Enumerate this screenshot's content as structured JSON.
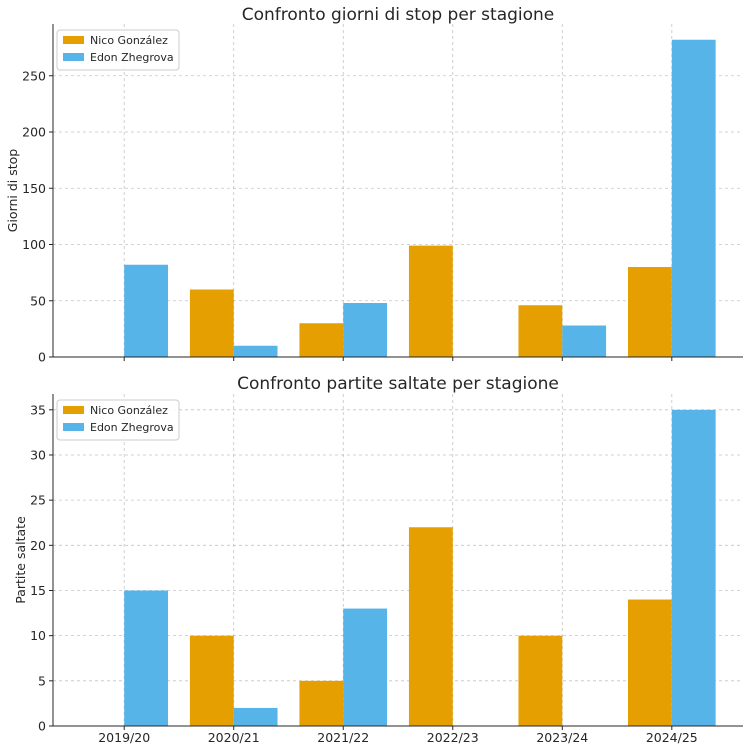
{
  "colors": {
    "nico": "#E69F00",
    "edon": "#56B4E9"
  },
  "chart_data": [
    {
      "type": "bar",
      "title": "Confronto giorni di stop per stagione",
      "xlabel": "",
      "ylabel": "Giorni di stop",
      "categories": [
        "2019/20",
        "2020/21",
        "2021/22",
        "2022/23",
        "2023/24",
        "2024/25"
      ],
      "series": [
        {
          "name": "Nico González",
          "values": [
            0,
            60,
            30,
            99,
            46,
            80
          ]
        },
        {
          "name": "Edon Zhegrova",
          "values": [
            82,
            10,
            48,
            0,
            28,
            282
          ]
        }
      ],
      "ylim": [
        0,
        296
      ],
      "yticks": [
        0,
        50,
        100,
        150,
        200,
        250
      ],
      "show_xticklabels": false,
      "grid": true,
      "legend": "top-left"
    },
    {
      "type": "bar",
      "title": "Confronto partite saltate per stagione",
      "xlabel": "",
      "ylabel": "Partite saltate",
      "categories": [
        "2019/20",
        "2020/21",
        "2021/22",
        "2022/23",
        "2023/24",
        "2024/25"
      ],
      "series": [
        {
          "name": "Nico González",
          "values": [
            0,
            10,
            5,
            22,
            10,
            14
          ]
        },
        {
          "name": "Edon Zhegrova",
          "values": [
            15,
            2,
            13,
            0,
            0,
            35
          ]
        }
      ],
      "ylim": [
        0,
        36.75
      ],
      "yticks": [
        0,
        5,
        10,
        15,
        20,
        25,
        30,
        35
      ],
      "show_xticklabels": true,
      "grid": true,
      "legend": "top-left"
    }
  ]
}
